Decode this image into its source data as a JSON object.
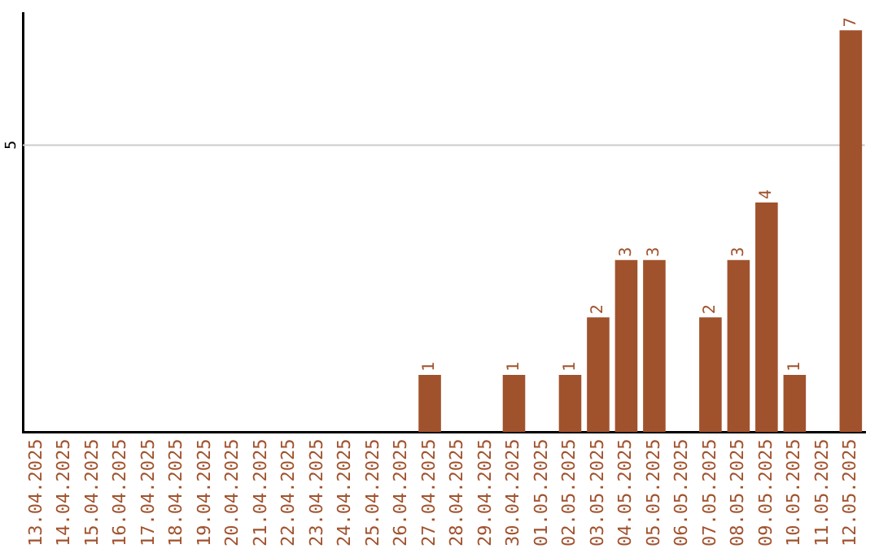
{
  "chart_data": {
    "type": "bar",
    "categories": [
      "13.04.2025",
      "14.04.2025",
      "15.04.2025",
      "16.04.2025",
      "17.04.2025",
      "18.04.2025",
      "19.04.2025",
      "20.04.2025",
      "21.04.2025",
      "22.04.2025",
      "23.04.2025",
      "24.04.2025",
      "25.04.2025",
      "26.04.2025",
      "27.04.2025",
      "28.04.2025",
      "29.04.2025",
      "30.04.2025",
      "01.05.2025",
      "02.05.2025",
      "03.05.2025",
      "04.05.2025",
      "05.05.2025",
      "06.05.2025",
      "07.05.2025",
      "08.05.2025",
      "09.05.2025",
      "10.05.2025",
      "11.05.2025",
      "12.05.2025"
    ],
    "values": [
      null,
      null,
      null,
      null,
      null,
      null,
      null,
      null,
      null,
      null,
      null,
      null,
      null,
      null,
      1,
      null,
      null,
      1,
      null,
      1,
      2,
      3,
      3,
      null,
      2,
      3,
      4,
      1,
      null,
      7
    ],
    "data_labels": true,
    "color": "#a0522d",
    "ylim": [
      0,
      7.3
    ],
    "ref_lines": [
      {
        "axis": "y",
        "value": 5,
        "label": "5",
        "color": "#cccccc"
      }
    ],
    "legend": false
  }
}
